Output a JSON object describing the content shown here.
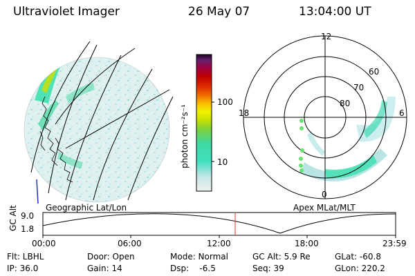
{
  "header": {
    "instrument": "Ultraviolet Imager",
    "date": "26 May 07",
    "time": "13:04:00 UT"
  },
  "colorbar": {
    "label": "photon cm⁻²s⁻¹",
    "ticks": [
      "100",
      "10"
    ],
    "colors": [
      "#f0f0f0",
      "#c8e6e6",
      "#40e0c0",
      "#40d8a0",
      "#7cd040",
      "#c8e000",
      "#f0f000",
      "#f8c000",
      "#f07000",
      "#e03000",
      "#c00000",
      "#a00040",
      "#60206a",
      "#200020"
    ]
  },
  "left_panel": {
    "caption": "Geographic Lat/Lon"
  },
  "right_panel": {
    "caption": "Apex  MLat/MLT",
    "mlt_labels": [
      "12",
      "18",
      "6",
      "0"
    ],
    "lat_labels": [
      "60",
      "70",
      "80"
    ]
  },
  "timeline": {
    "axis_label": "GC Alt",
    "y_ticks": [
      "9.0",
      "1.8"
    ],
    "x_ticks": [
      "00:00",
      "06:00",
      "12:00",
      "18:00",
      "23:59"
    ],
    "current_time_fraction": 0.545
  },
  "status": {
    "flt": "Flt: LBHL",
    "door": "Door: Open",
    "mode": "Mode: Normal",
    "gc_alt": "GC Alt: 5.9 Re",
    "glat": "GLat: -60.8",
    "ip": "IP: 36.0",
    "gain": "Gain: 14",
    "dsp": "Dsp:    -6.5",
    "seq": "Seq: 39",
    "glon": "GLon: 220.2"
  }
}
